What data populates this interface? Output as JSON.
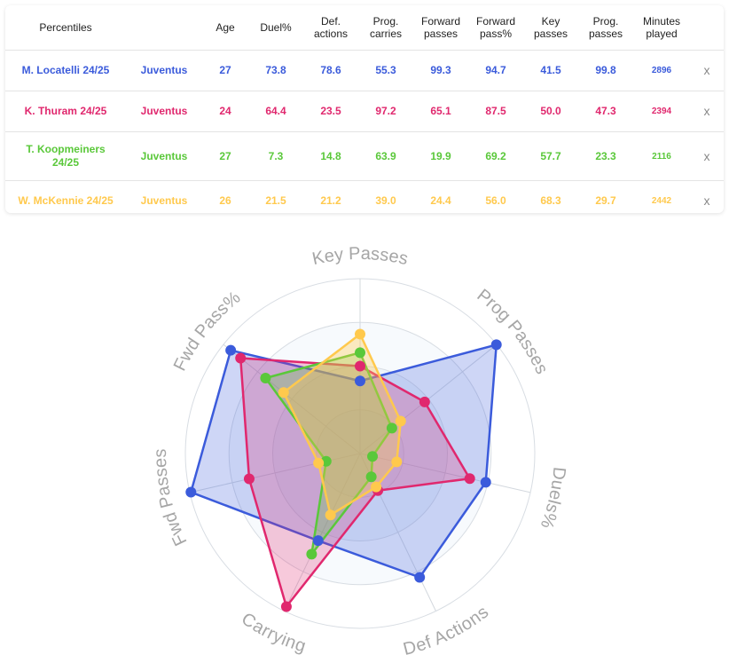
{
  "table": {
    "headers": [
      {
        "key": "percentiles",
        "label": "Percentiles"
      },
      {
        "key": "club",
        "label": ""
      },
      {
        "key": "age",
        "label": "Age"
      },
      {
        "key": "duel",
        "label": "Duel%"
      },
      {
        "key": "def_actions",
        "label": "Def. actions"
      },
      {
        "key": "prog_carries",
        "label": "Prog. carries"
      },
      {
        "key": "forward_passes",
        "label": "Forward passes"
      },
      {
        "key": "forward_pass_pct",
        "label": "Forward pass%"
      },
      {
        "key": "key_passes",
        "label": "Key passes"
      },
      {
        "key": "prog_passes",
        "label": "Prog. passes"
      },
      {
        "key": "minutes",
        "label": "Minutes played"
      }
    ],
    "remove_label": "x",
    "rows": [
      {
        "player": "M. Locatelli 24/25",
        "club": "Juventus",
        "age": "27",
        "duel": "73.8",
        "def_actions": "78.6",
        "prog_carries": "55.3",
        "forward_passes": "99.3",
        "forward_pass_pct": "94.7",
        "key_passes": "41.5",
        "prog_passes": "99.8",
        "minutes": "2896",
        "color": "#3b5bdb"
      },
      {
        "player": "K. Thuram 24/25",
        "club": "Juventus",
        "age": "24",
        "duel": "64.4",
        "def_actions": "23.5",
        "prog_carries": "97.2",
        "forward_passes": "65.1",
        "forward_pass_pct": "87.5",
        "key_passes": "50.0",
        "prog_passes": "47.3",
        "minutes": "2394",
        "color": "#e0286e"
      },
      {
        "player": "T. Koopmeiners 24/25",
        "club": "Juventus",
        "age": "27",
        "duel": "7.3",
        "def_actions": "14.8",
        "prog_carries": "63.9",
        "forward_passes": "19.9",
        "forward_pass_pct": "69.2",
        "key_passes": "57.7",
        "prog_passes": "23.3",
        "minutes": "2116",
        "color": "#5ac83a"
      },
      {
        "player": "W. McKennie 24/25",
        "club": "Juventus",
        "age": "26",
        "duel": "21.5",
        "def_actions": "21.2",
        "prog_carries": "39.0",
        "forward_passes": "24.4",
        "forward_pass_pct": "56.0",
        "key_passes": "68.3",
        "prog_passes": "29.7",
        "minutes": "2442",
        "color": "#ffc94d"
      }
    ]
  },
  "chart_data": {
    "type": "radar",
    "axes": [
      "Key Passes",
      "Prog Passes",
      "Duels%",
      "Def Actions",
      "Carrying",
      "Fwd Passes",
      "Fwd Pass%"
    ],
    "range": [
      0,
      100
    ],
    "rings": 4,
    "series": [
      {
        "name": "M. Locatelli 24/25",
        "color": "#3b5bdb",
        "values": [
          41.5,
          99.8,
          73.8,
          78.6,
          55.3,
          99.3,
          94.7
        ]
      },
      {
        "name": "K. Thuram 24/25",
        "color": "#e0286e",
        "values": [
          50.0,
          47.3,
          64.4,
          23.5,
          97.2,
          65.1,
          87.5
        ]
      },
      {
        "name": "T. Koopmeiners 24/25",
        "color": "#5ac83a",
        "values": [
          57.7,
          23.3,
          7.3,
          14.8,
          63.9,
          19.9,
          69.2
        ]
      },
      {
        "name": "W. McKennie 24/25",
        "color": "#ffc94d",
        "values": [
          68.3,
          29.7,
          21.5,
          21.2,
          39.0,
          24.4,
          56.0
        ]
      }
    ]
  }
}
